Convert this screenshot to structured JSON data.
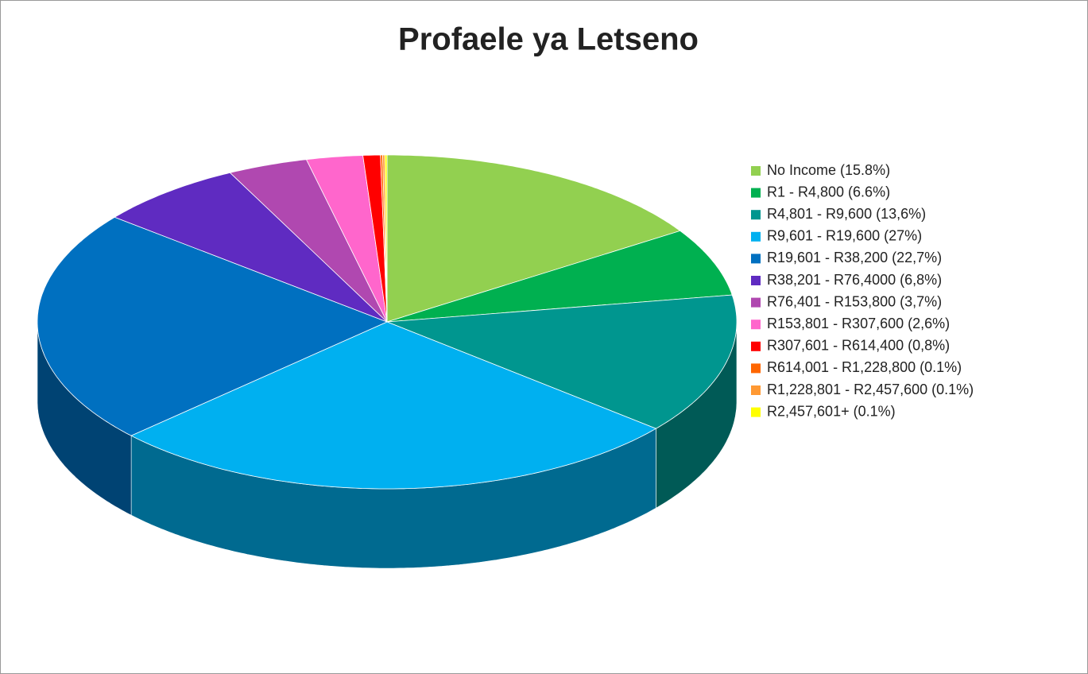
{
  "chart_data": {
    "type": "pie3d",
    "title": "Profaele ya Letseno",
    "categories": [
      "No Income (15.8%)",
      "R1 - R4,800 (6.6%)",
      "R4,801 - R9,600 (13,6%)",
      "R9,601 - R19,600 (27%)",
      "R19,601 - R38,200 (22,7%)",
      "R38,201 - R76,4000 (6,8%)",
      "R76,401 - R153,800 (3,7%)",
      "R153,801 - R307,600 (2,6%)",
      "R307,601 - R614,400 (0,8%)",
      "R614,001 - R1,228,800 (0.1%)",
      "R1,228,801 - R2,457,600 (0.1%)",
      "R2,457,601+ (0.1%)"
    ],
    "values": [
      15.8,
      6.6,
      13.6,
      27,
      22.7,
      6.8,
      3.7,
      2.6,
      0.8,
      0.1,
      0.1,
      0.1
    ],
    "colors": [
      "#92d050",
      "#00b050",
      "#00968f",
      "#00b0f0",
      "#0070c0",
      "#5f2bc1",
      "#b048b0",
      "#ff66cc",
      "#ff0000",
      "#ff6600",
      "#ff9933",
      "#ffff00"
    ],
    "legend": "right"
  }
}
